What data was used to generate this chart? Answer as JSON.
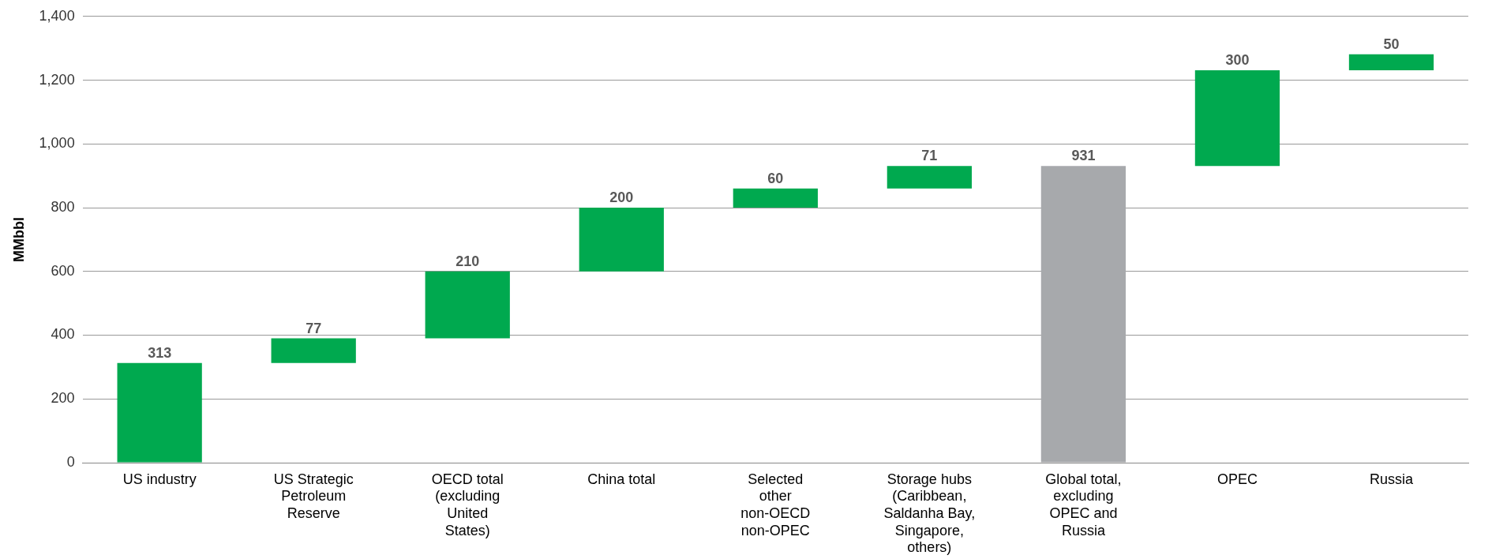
{
  "chart_data": {
    "type": "bar",
    "ylabel": "MMbbl",
    "categories": [
      "US industry",
      "US Strategic Petroleum Reserve",
      "OECD total (excluding United States)",
      "China total",
      "Selected other non-OECD non-OPEC",
      "Storage hubs (Caribbean, Saldanha Bay, Singapore, others)",
      "Global total, excluding OPEC and Russia",
      "OPEC",
      "Russia"
    ],
    "values": [
      313,
      77,
      210,
      200,
      60,
      71,
      931,
      300,
      50
    ],
    "base": [
      0,
      313,
      390,
      600,
      800,
      860,
      0,
      931,
      1231
    ],
    "colors": [
      "#00a94f",
      "#00a94f",
      "#00a94f",
      "#00a94f",
      "#00a94f",
      "#00a94f",
      "#a7a9ac",
      "#00a94f",
      "#00a94f"
    ],
    "ylim": [
      0,
      1400
    ],
    "yticks": [
      0,
      200,
      400,
      600,
      800,
      {
        "value": 1000,
        "label": "1,000"
      },
      {
        "value": 1200,
        "label": "1,200"
      },
      {
        "value": 1400,
        "label": "1,400"
      }
    ],
    "grid": "y",
    "data_labels": true,
    "legend": false
  }
}
